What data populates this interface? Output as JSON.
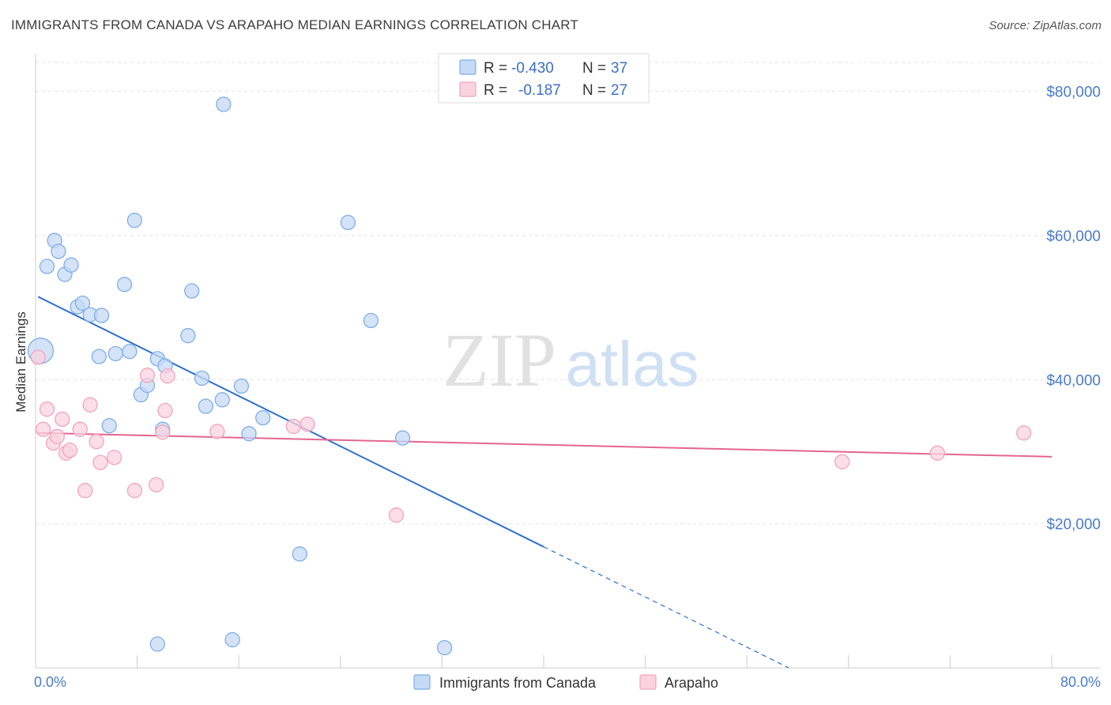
{
  "title": "IMMIGRANTS FROM CANADA VS ARAPAHO MEDIAN EARNINGS CORRELATION CHART",
  "source": "Source: ZipAtlas.com",
  "watermark": {
    "zip": "ZIP",
    "atlas": "atlas"
  },
  "chart_data": {
    "type": "scatter",
    "xlabel": "",
    "ylabel": "Median Earnings",
    "xlim": [
      0,
      80
    ],
    "ylim": [
      0,
      85000
    ],
    "x_tick_labels": [
      "0.0%",
      "80.0%"
    ],
    "y_ticks": [
      20000,
      40000,
      60000,
      80000
    ],
    "y_tick_labels": [
      "$20,000",
      "$40,000",
      "$60,000",
      "$80,000"
    ],
    "grid": true,
    "legend_position": "top-center",
    "series": [
      {
        "name": "Immigrants from Canada",
        "color": "#7faee8",
        "fill": "#c5daf5",
        "r_label": "R = ",
        "r_value": "-0.430",
        "n_label": "N = ",
        "n_value": "37",
        "trend": {
          "x_start": 0.2,
          "y_start": 51500,
          "x_solid_end": 40.0,
          "y_solid_end": 16800,
          "x_dash_end": 59.3,
          "y_dash_end": 0
        },
        "points": [
          {
            "x": 0.4,
            "y": 44000,
            "big": true
          },
          {
            "x": 1.5,
            "y": 59300
          },
          {
            "x": 0.9,
            "y": 55700
          },
          {
            "x": 1.8,
            "y": 57800
          },
          {
            "x": 2.3,
            "y": 54600
          },
          {
            "x": 2.8,
            "y": 55900
          },
          {
            "x": 3.3,
            "y": 50100
          },
          {
            "x": 3.7,
            "y": 50600
          },
          {
            "x": 4.3,
            "y": 49000
          },
          {
            "x": 5.2,
            "y": 48900
          },
          {
            "x": 5.0,
            "y": 43200
          },
          {
            "x": 7.0,
            "y": 53200
          },
          {
            "x": 6.3,
            "y": 43600
          },
          {
            "x": 7.4,
            "y": 43900
          },
          {
            "x": 7.8,
            "y": 62100
          },
          {
            "x": 9.6,
            "y": 42900
          },
          {
            "x": 10.2,
            "y": 41900
          },
          {
            "x": 8.3,
            "y": 37900
          },
          {
            "x": 8.8,
            "y": 39200
          },
          {
            "x": 5.8,
            "y": 33600
          },
          {
            "x": 10.0,
            "y": 33100
          },
          {
            "x": 12.0,
            "y": 46100
          },
          {
            "x": 12.3,
            "y": 52300
          },
          {
            "x": 13.1,
            "y": 40200
          },
          {
            "x": 13.4,
            "y": 36300
          },
          {
            "x": 14.7,
            "y": 37200
          },
          {
            "x": 16.2,
            "y": 39100
          },
          {
            "x": 16.8,
            "y": 32500
          },
          {
            "x": 17.9,
            "y": 34700
          },
          {
            "x": 14.8,
            "y": 78200
          },
          {
            "x": 24.6,
            "y": 61800
          },
          {
            "x": 26.4,
            "y": 48200
          },
          {
            "x": 28.9,
            "y": 31900
          },
          {
            "x": 20.8,
            "y": 15800
          },
          {
            "x": 9.6,
            "y": 3300
          },
          {
            "x": 15.5,
            "y": 3900
          },
          {
            "x": 32.2,
            "y": 2800
          }
        ]
      },
      {
        "name": "Arapaho",
        "color": "#f4a3bc",
        "fill": "#fad3df",
        "r_label": "R = ",
        "r_value": "-0.187",
        "n_label": "N = ",
        "n_value": "27",
        "trend": {
          "x_start": 0.2,
          "y_start": 32600,
          "x_solid_end": 80.0,
          "y_solid_end": 29300
        },
        "points": [
          {
            "x": 0.2,
            "y": 43100
          },
          {
            "x": 0.6,
            "y": 33100
          },
          {
            "x": 0.9,
            "y": 35900
          },
          {
            "x": 1.4,
            "y": 31200
          },
          {
            "x": 1.7,
            "y": 32100
          },
          {
            "x": 2.1,
            "y": 34500
          },
          {
            "x": 2.4,
            "y": 29800
          },
          {
            "x": 2.7,
            "y": 30200
          },
          {
            "x": 3.5,
            "y": 33100
          },
          {
            "x": 3.9,
            "y": 24600
          },
          {
            "x": 4.3,
            "y": 36500
          },
          {
            "x": 4.8,
            "y": 31400
          },
          {
            "x": 5.1,
            "y": 28500
          },
          {
            "x": 6.2,
            "y": 29200
          },
          {
            "x": 7.8,
            "y": 24600
          },
          {
            "x": 8.8,
            "y": 40600
          },
          {
            "x": 9.5,
            "y": 25400
          },
          {
            "x": 10.0,
            "y": 32700
          },
          {
            "x": 10.2,
            "y": 35700
          },
          {
            "x": 10.4,
            "y": 40500
          },
          {
            "x": 14.3,
            "y": 32800
          },
          {
            "x": 20.3,
            "y": 33500
          },
          {
            "x": 21.4,
            "y": 33800
          },
          {
            "x": 28.4,
            "y": 21200
          },
          {
            "x": 63.5,
            "y": 28600
          },
          {
            "x": 71.0,
            "y": 29800
          },
          {
            "x": 77.8,
            "y": 32600
          }
        ]
      }
    ]
  }
}
